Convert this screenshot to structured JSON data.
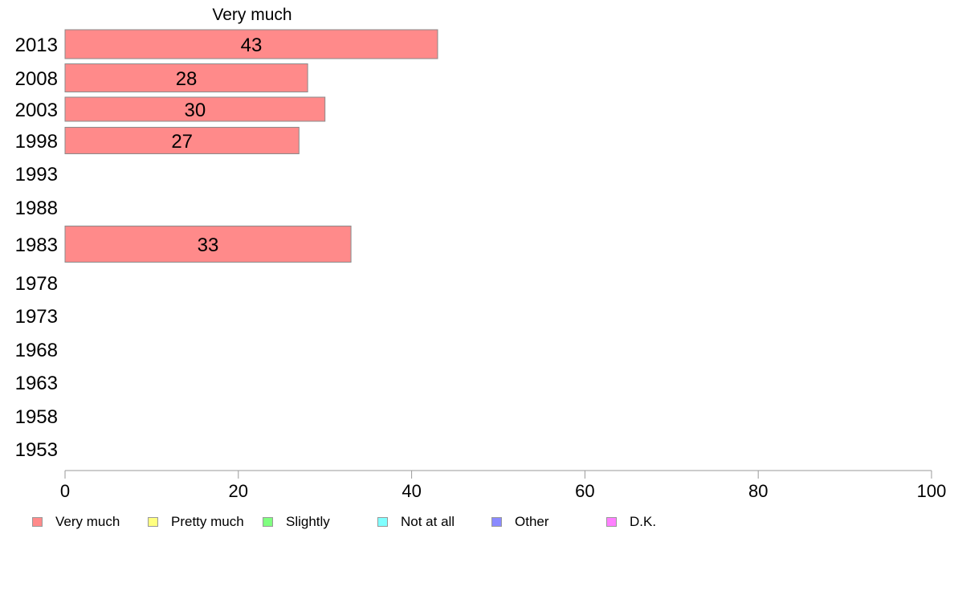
{
  "chart_data": {
    "type": "bar",
    "orientation": "horizontal",
    "title": "Very much",
    "categories": [
      "2013",
      "2008",
      "2003",
      "1998",
      "1993",
      "1988",
      "1983",
      "1978",
      "1973",
      "1968",
      "1963",
      "1958",
      "1953"
    ],
    "series": [
      {
        "name": "Very much",
        "values": [
          43,
          28,
          30,
          27,
          null,
          null,
          33,
          null,
          null,
          null,
          null,
          null,
          null
        ],
        "color": "#ff8a8a"
      }
    ],
    "data_labels": [
      "43",
      "28",
      "30",
      "27",
      "",
      "",
      "33",
      "",
      "",
      "",
      "",
      "",
      ""
    ],
    "xlim": [
      0,
      100
    ],
    "x_ticks": [
      "0",
      "20",
      "40",
      "60",
      "80",
      "100"
    ],
    "grid": false,
    "legend_position": "bottom"
  },
  "legend": {
    "items": [
      {
        "label": "Very much",
        "color": "#ff8a8a"
      },
      {
        "label": "Pretty much",
        "color": "#ffff80"
      },
      {
        "label": "Slightly",
        "color": "#80ff80"
      },
      {
        "label": "Not at all",
        "color": "#80ffff"
      },
      {
        "label": "Other",
        "color": "#8a8aff"
      },
      {
        "label": "D.K.",
        "color": "#ff80ff"
      }
    ]
  }
}
